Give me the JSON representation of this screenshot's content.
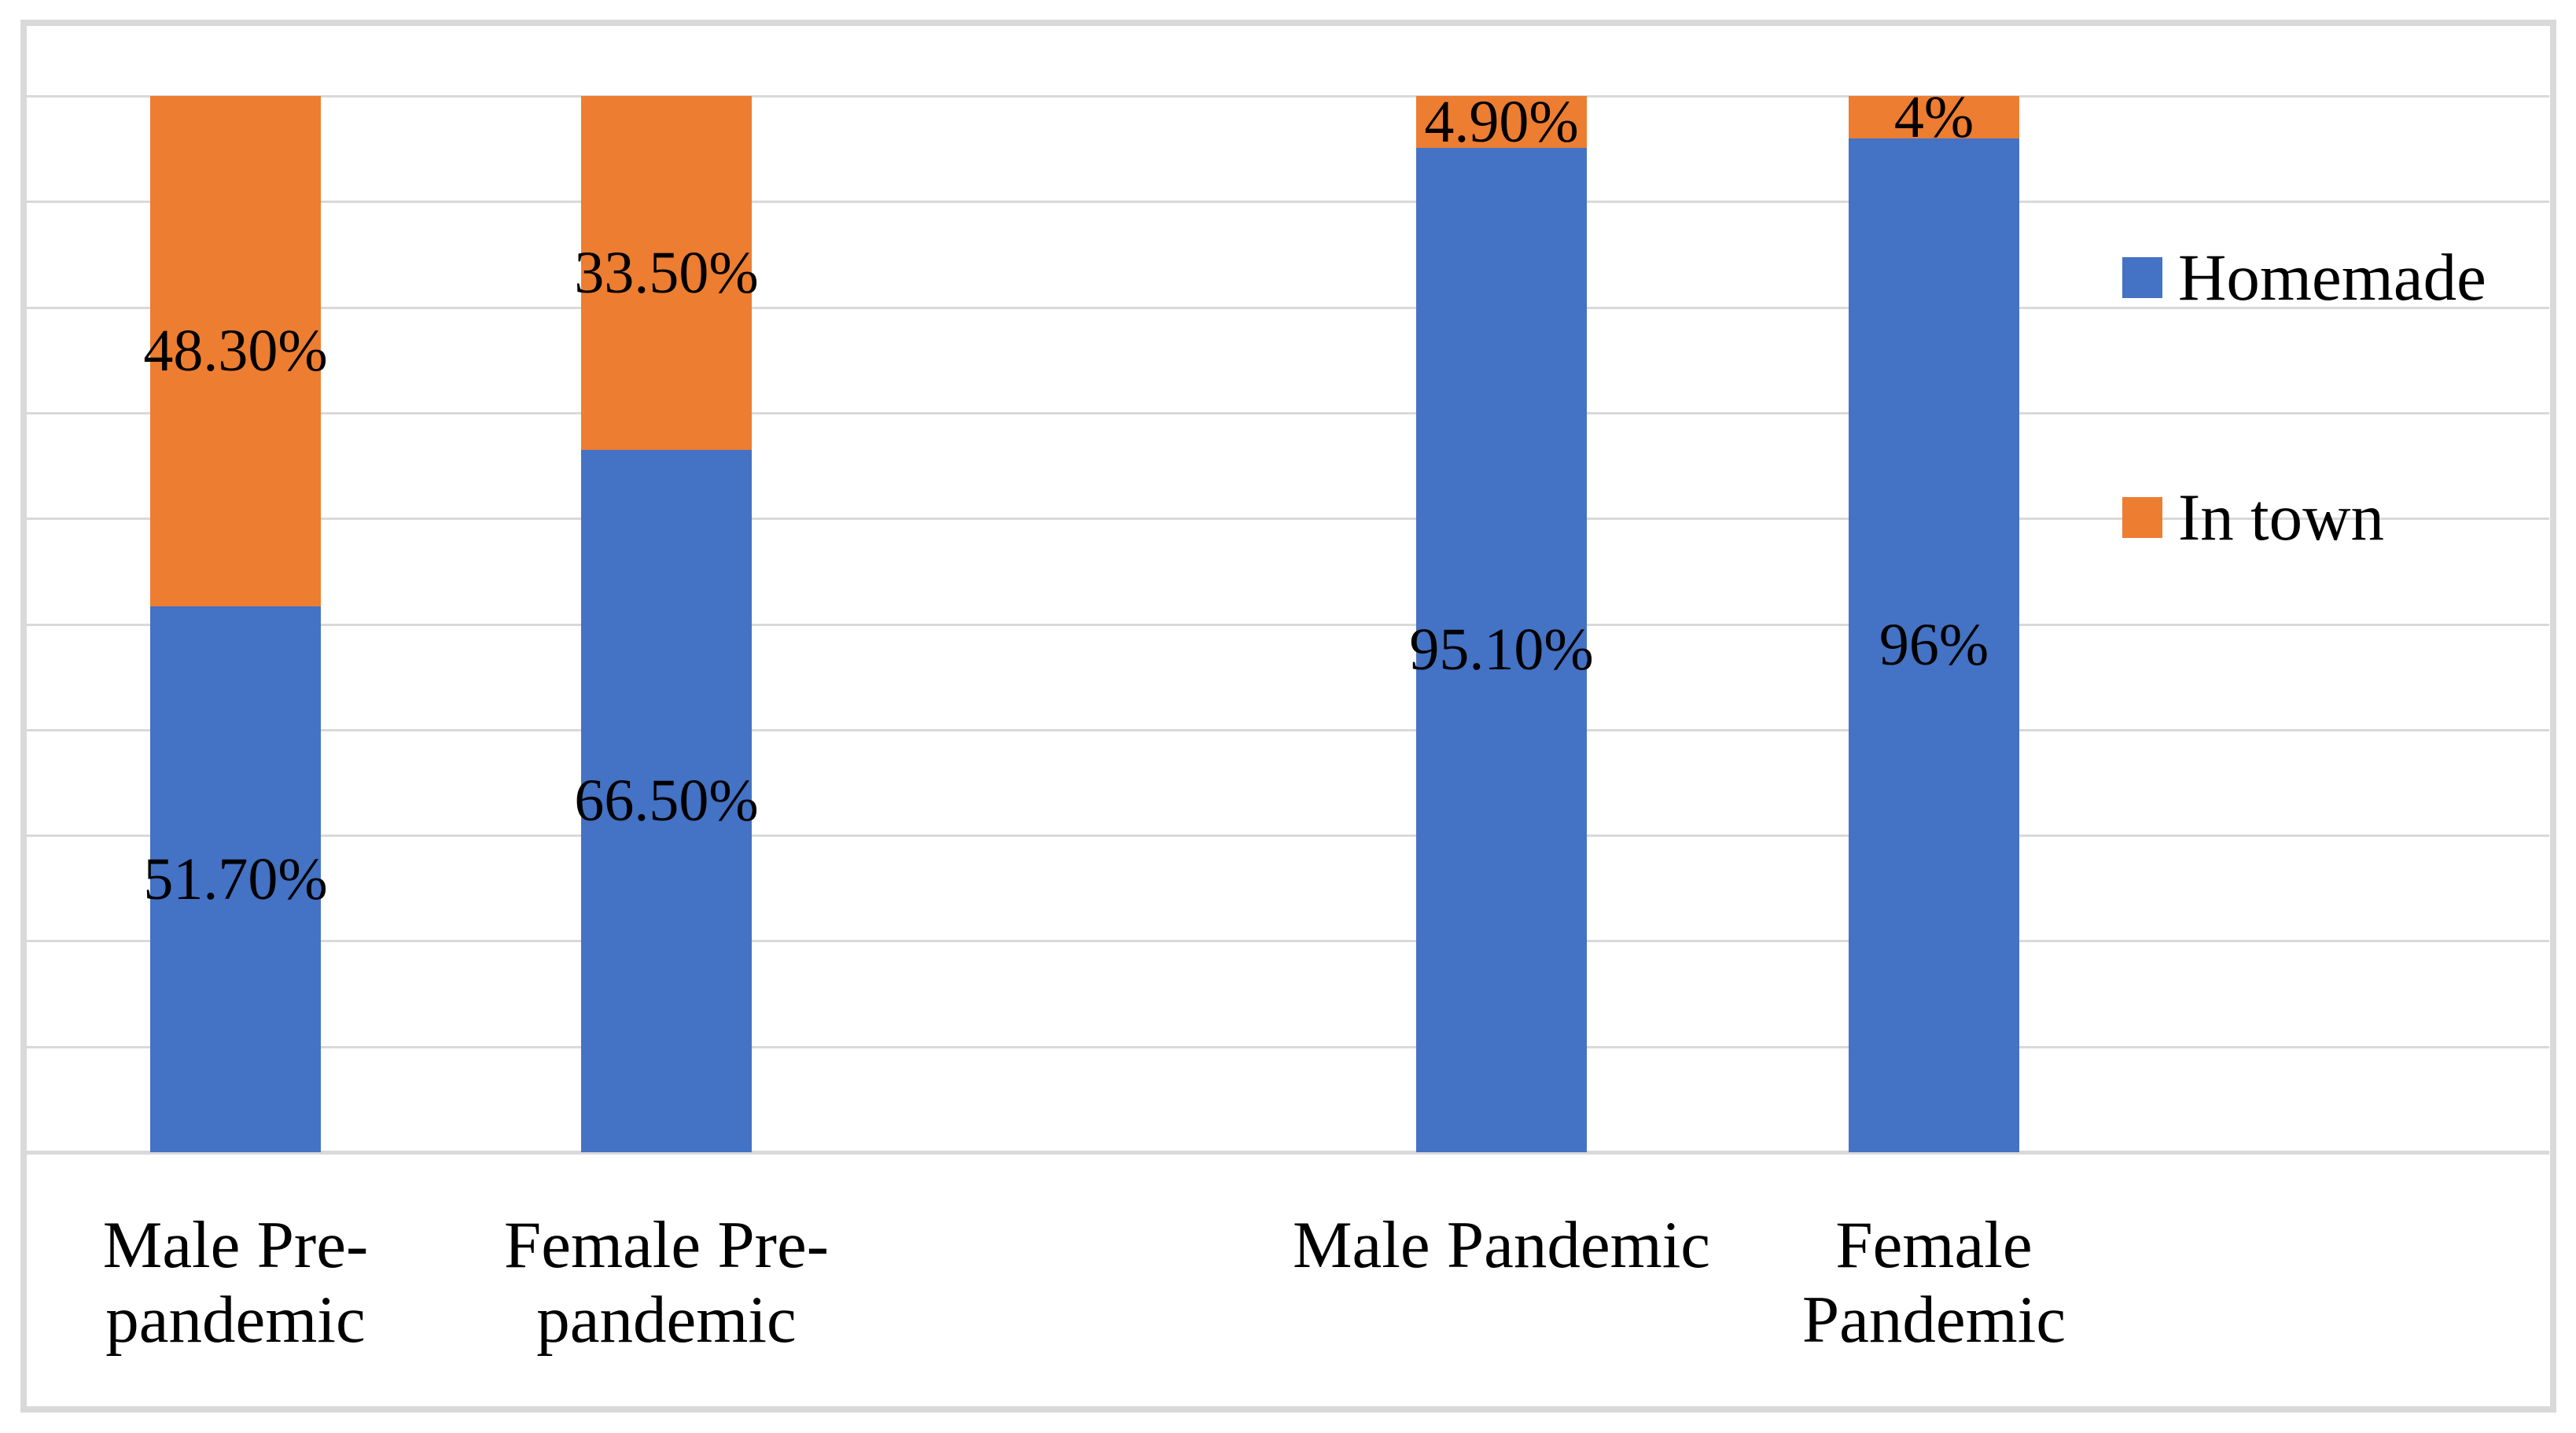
{
  "chart_data": {
    "type": "bar",
    "variant": "stacked-column-100-percent",
    "title": "",
    "xlabel": "",
    "ylabel": "",
    "ylim": [
      0,
      100
    ],
    "gridline_step_percent": 10,
    "grid": true,
    "legend_position": "right",
    "categories": [
      "Male Pre-pandemic",
      "Female Pre-pandemic",
      "Male Pandemic",
      "Female Pandemic"
    ],
    "category_label_lines": [
      [
        "Male Pre-",
        "pandemic"
      ],
      [
        "Female Pre-",
        "pandemic"
      ],
      [
        "Male Pandemic"
      ],
      [
        "Female",
        "Pandemic"
      ]
    ],
    "series": [
      {
        "name": "Homemade",
        "color": "#4472C4",
        "values": [
          51.7,
          66.5,
          95.1,
          96
        ],
        "data_labels": [
          "51.70%",
          "66.50%",
          "95.10%",
          "96%"
        ]
      },
      {
        "name": "In town",
        "color": "#ED7D31",
        "values": [
          48.3,
          33.5,
          4.9,
          4
        ],
        "data_labels": [
          "48.30%",
          "33.50%",
          "4.90%",
          "4%"
        ]
      }
    ]
  },
  "styles": {
    "gridline_color": "#D9D9D9",
    "frame_color": "#D9D9D9",
    "axis_line_color": "#D9D9D9",
    "text_color": "#000000",
    "background": "#FFFFFF"
  }
}
